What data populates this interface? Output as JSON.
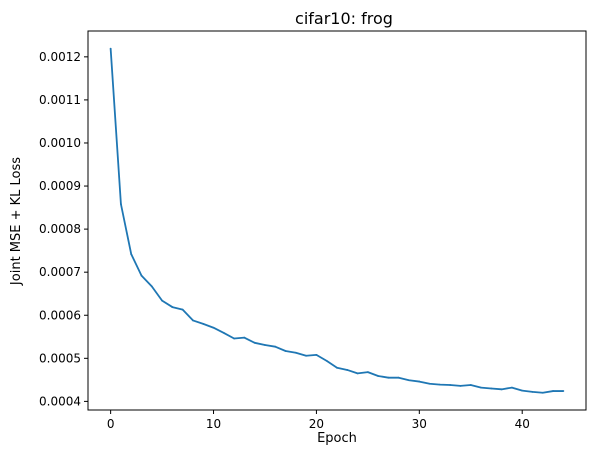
{
  "chart_data": {
    "type": "line",
    "title": "cifar10: frog",
    "xlabel": "Epoch",
    "ylabel": "Joint MSE + KL Loss",
    "xlim": [
      -2.2,
      46.2
    ],
    "ylim": [
      0.00038,
      0.00126
    ],
    "xticks": [
      0,
      10,
      20,
      30,
      40
    ],
    "xtick_labels": [
      "0",
      "10",
      "20",
      "30",
      "40"
    ],
    "yticks": [
      0.0004,
      0.0005,
      0.0006,
      0.0007,
      0.0008,
      0.0009,
      0.001,
      0.0011,
      0.0012
    ],
    "ytick_labels": [
      "0.0004",
      "0.0005",
      "0.0006",
      "0.0007",
      "0.0008",
      "0.0009",
      "0.0010",
      "0.0011",
      "0.0012"
    ],
    "grid": false,
    "series": [
      {
        "color": "#1f77b4",
        "x": [
          0,
          1,
          2,
          3,
          4,
          5,
          6,
          7,
          8,
          9,
          10,
          11,
          12,
          13,
          14,
          15,
          16,
          17,
          18,
          19,
          20,
          21,
          22,
          23,
          24,
          25,
          26,
          27,
          28,
          29,
          30,
          31,
          32,
          33,
          34,
          35,
          36,
          37,
          38,
          39,
          40,
          41,
          42,
          43,
          44
        ],
        "y": [
          0.001219,
          0.000858,
          0.000742,
          0.000692,
          0.000667,
          0.000634,
          0.000619,
          0.000613,
          0.000588,
          0.00058,
          0.000571,
          0.000559,
          0.000546,
          0.000548,
          0.000536,
          0.000531,
          0.000527,
          0.000517,
          0.000513,
          0.000506,
          0.000508,
          0.000494,
          0.000478,
          0.000473,
          0.000465,
          0.000468,
          0.000459,
          0.000455,
          0.000455,
          0.000449,
          0.000446,
          0.000441,
          0.000439,
          0.000438,
          0.000436,
          0.000438,
          0.000432,
          0.00043,
          0.000428,
          0.000432,
          0.000425,
          0.000422,
          0.00042,
          0.000424,
          0.000424
        ]
      }
    ]
  }
}
